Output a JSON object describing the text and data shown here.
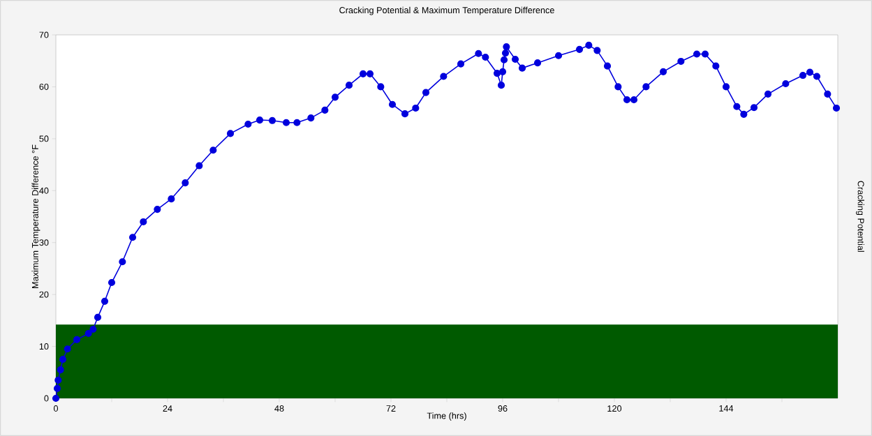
{
  "chart_data": {
    "type": "line",
    "title": "Cracking Potential & Maximum Temperature Difference",
    "xlabel": "Time (hrs)",
    "ylabel": "Maximum Temperature Difference °F",
    "y2label": "Cracking Potential",
    "x": [
      0,
      0.3,
      0.5,
      1,
      1.5,
      2.5,
      4.5,
      7,
      8,
      9,
      10.5,
      12,
      14.3,
      16.5,
      18.8,
      21.8,
      24.8,
      27.8,
      30.8,
      33.8,
      37.5,
      41.3,
      43.8,
      46.5,
      49.5,
      51.8,
      54.8,
      57.8,
      60,
      63,
      66,
      67.5,
      69.8,
      72.3,
      75,
      77.3,
      79.5,
      83.3,
      87,
      90.8,
      92.3,
      94.8,
      95.7,
      96,
      96.3,
      96.6,
      96.8,
      98.7,
      100.2,
      103.5,
      108,
      112.5,
      114.5,
      116.3,
      118.5,
      120.8,
      122.7,
      124.2,
      126.8,
      130.5,
      134.3,
      137.7,
      139.5,
      141.8,
      144,
      146.3,
      147.8,
      150,
      153,
      156.8,
      160.5,
      162,
      163.5,
      165.8,
      167.7
    ],
    "series": [
      {
        "color": "#0000dd",
        "values": [
          0,
          1.9,
          3.5,
          5.5,
          7.5,
          9.5,
          11.3,
          12.5,
          13.3,
          15.6,
          18.7,
          22.3,
          26.3,
          31,
          34,
          36.4,
          38.4,
          41.5,
          44.8,
          47.8,
          51,
          52.8,
          53.6,
          53.5,
          53.1,
          53.1,
          54,
          55.5,
          58,
          60.3,
          62.5,
          62.5,
          60,
          56.6,
          54.8,
          55.9,
          58.9,
          62,
          64.4,
          66.4,
          65.7,
          62.6,
          60.3,
          62.9,
          65.2,
          66.5,
          67.7,
          65.3,
          63.6,
          64.6,
          66,
          67.2,
          68,
          67,
          64,
          60,
          57.5,
          57.5,
          60,
          62.9,
          64.9,
          66.3,
          66.3,
          64,
          60,
          56.2,
          54.7,
          56,
          58.6,
          60.6,
          62.2,
          62.8,
          62,
          58.6,
          55.9
        ]
      }
    ],
    "xlim": [
      0,
      168
    ],
    "ylim": [
      0,
      70
    ],
    "xticks": [
      0,
      {
        "value": 12,
        "label": null
      },
      24,
      {
        "value": 36,
        "label": null
      },
      48,
      {
        "value": 60,
        "label": null
      },
      72,
      {
        "value": 84,
        "label": null
      },
      96,
      {
        "value": 108,
        "label": null
      },
      120,
      {
        "value": 132,
        "label": null
      },
      144,
      {
        "value": 156,
        "label": null
      }
    ],
    "yticks": [
      0,
      10,
      20,
      30,
      40,
      50,
      60,
      70
    ],
    "bands": [
      {
        "axis": "y",
        "from": 0,
        "to": 14.2,
        "color": "#005a00"
      }
    ],
    "marker": "circle",
    "line_style": "solid"
  }
}
